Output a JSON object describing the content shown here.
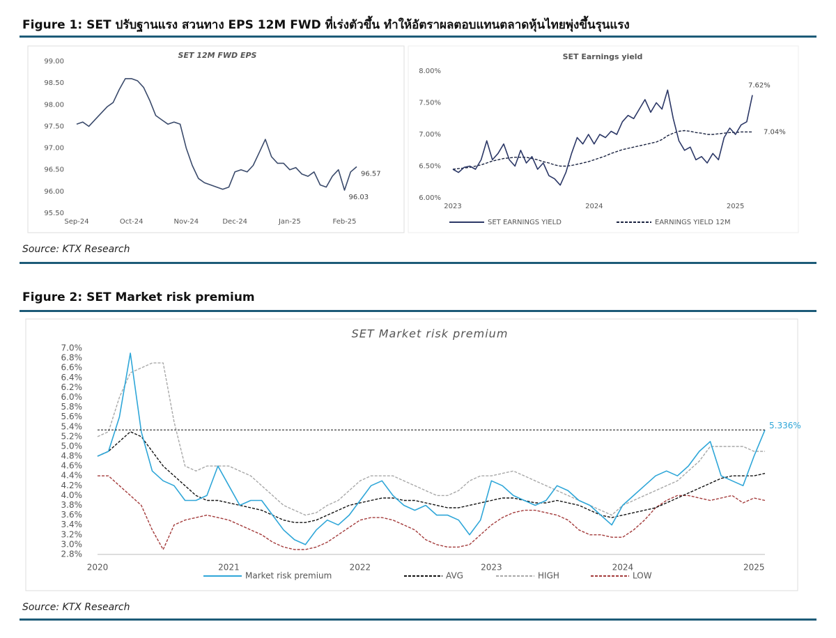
{
  "figure1": {
    "caption": "Figure 1: SET ปรับฐานแรง สวนทาง EPS 12M FWD ที่เร่งตัวขึ้น ทำให้อัตราผลตอบแทนตลาดหุ้นไทยพุ่งขึ้นรุนแรง",
    "source": "Source: KTX Research"
  },
  "figure2": {
    "caption": "Figure 2: SET Market risk premium",
    "source": "Source: KTX Research"
  },
  "chart_data": [
    {
      "type": "line",
      "title": "SET 12M FWD EPS",
      "categories": [
        "Sep-24",
        null,
        null,
        null,
        null,
        null,
        null,
        null,
        null,
        "Oct-24",
        null,
        null,
        null,
        null,
        null,
        null,
        null,
        null,
        "Nov-24",
        null,
        null,
        null,
        null,
        null,
        null,
        null,
        "Dec-24",
        null,
        null,
        null,
        null,
        null,
        null,
        null,
        null,
        "Jan-25",
        null,
        null,
        null,
        null,
        null,
        null,
        null,
        null,
        "Feb-25",
        null,
        null
      ],
      "values": [
        97.55,
        97.6,
        97.5,
        97.65,
        97.8,
        97.95,
        98.05,
        98.35,
        98.6,
        98.6,
        98.55,
        98.4,
        98.1,
        97.75,
        97.65,
        97.55,
        97.6,
        97.55,
        97.0,
        96.6,
        96.3,
        96.2,
        96.15,
        96.1,
        96.05,
        96.1,
        96.45,
        96.5,
        96.45,
        96.6,
        96.9,
        97.2,
        96.8,
        96.65,
        96.65,
        96.5,
        96.55,
        96.4,
        96.35,
        96.45,
        96.15,
        96.1,
        96.35,
        96.5,
        96.03,
        96.45,
        96.57
      ],
      "value_labels": [
        null,
        null,
        null,
        null,
        null,
        null,
        null,
        null,
        null,
        null,
        null,
        null,
        null,
        null,
        null,
        null,
        null,
        null,
        null,
        null,
        null,
        null,
        null,
        null,
        null,
        null,
        null,
        null,
        null,
        null,
        null,
        null,
        null,
        null,
        null,
        null,
        null,
        null,
        null,
        null,
        null,
        null,
        null,
        null,
        "96.03",
        null,
        "96.57"
      ],
      "color": "#3a4a6b",
      "ylim": [
        95.5,
        99.0
      ],
      "yticks": [
        {
          "value": 95.5,
          "label": "95.50"
        },
        {
          "value": 96,
          "label": "96.00"
        },
        {
          "value": 96.5,
          "label": "96.50"
        },
        {
          "value": 97,
          "label": "97.00"
        },
        {
          "value": 97.5,
          "label": "97.50"
        },
        {
          "value": 98,
          "label": "98.00"
        },
        {
          "value": 98.5,
          "label": "98.50"
        },
        {
          "value": 99,
          "label": "99.00"
        }
      ]
    },
    {
      "type": "line",
      "title": "SET Earnings yield",
      "categories": [
        "2023",
        null,
        null,
        null,
        null,
        null,
        null,
        null,
        null,
        null,
        null,
        null,
        null,
        null,
        null,
        null,
        null,
        null,
        null,
        null,
        null,
        null,
        null,
        null,
        null,
        "2024",
        null,
        null,
        null,
        null,
        null,
        null,
        null,
        null,
        null,
        null,
        null,
        null,
        null,
        null,
        null,
        null,
        null,
        null,
        null,
        null,
        null,
        null,
        null,
        null,
        "2025",
        null,
        null,
        null
      ],
      "series": [
        {
          "name": "SET EARNINGS YIELD",
          "color": "#2b3766",
          "dashed": false,
          "values": [
            6.45,
            6.4,
            6.48,
            6.5,
            6.45,
            6.6,
            6.9,
            6.6,
            6.7,
            6.85,
            6.6,
            6.5,
            6.75,
            6.55,
            6.65,
            6.45,
            6.55,
            6.35,
            6.3,
            6.2,
            6.4,
            6.7,
            6.95,
            6.85,
            7.0,
            6.85,
            7.0,
            6.95,
            7.05,
            7.0,
            7.2,
            7.3,
            7.25,
            7.4,
            7.55,
            7.35,
            7.5,
            7.4,
            7.7,
            7.25,
            6.9,
            6.75,
            6.8,
            6.6,
            6.65,
            6.55,
            6.7,
            6.6,
            6.95,
            7.1,
            7.0,
            7.15,
            7.2,
            7.62
          ],
          "value_labels": [
            null,
            null,
            null,
            null,
            null,
            null,
            null,
            null,
            null,
            null,
            null,
            null,
            null,
            null,
            null,
            null,
            null,
            null,
            null,
            null,
            null,
            null,
            null,
            null,
            null,
            null,
            null,
            null,
            null,
            null,
            null,
            null,
            null,
            null,
            null,
            null,
            null,
            null,
            null,
            null,
            null,
            null,
            null,
            null,
            null,
            null,
            null,
            null,
            null,
            null,
            null,
            null,
            null,
            "7.62%"
          ]
        },
        {
          "name": "EARNINGS YIELD 12M",
          "color": "#1a2340",
          "dashed": true,
          "values": [
            6.45,
            6.46,
            6.47,
            6.48,
            6.5,
            6.52,
            6.55,
            6.58,
            6.6,
            6.62,
            6.63,
            6.64,
            6.64,
            6.64,
            6.62,
            6.6,
            6.57,
            6.55,
            6.52,
            6.5,
            6.5,
            6.51,
            6.53,
            6.55,
            6.57,
            6.6,
            6.63,
            6.66,
            6.7,
            6.73,
            6.76,
            6.78,
            6.8,
            6.82,
            6.84,
            6.86,
            6.88,
            6.92,
            6.98,
            7.02,
            7.05,
            7.06,
            7.05,
            7.03,
            7.02,
            7.0,
            7.0,
            7.01,
            7.02,
            7.03,
            7.03,
            7.04,
            7.04,
            7.04
          ],
          "value_labels": [
            null,
            null,
            null,
            null,
            null,
            null,
            null,
            null,
            null,
            null,
            null,
            null,
            null,
            null,
            null,
            null,
            null,
            null,
            null,
            null,
            null,
            null,
            null,
            null,
            null,
            null,
            null,
            null,
            null,
            null,
            null,
            null,
            null,
            null,
            null,
            null,
            null,
            null,
            null,
            null,
            null,
            null,
            null,
            null,
            null,
            null,
            null,
            null,
            null,
            null,
            null,
            null,
            null,
            "7.04%"
          ]
        }
      ],
      "ylim": [
        6.0,
        8.0
      ],
      "yticks": [
        {
          "value": 6,
          "label": "6.00%"
        },
        {
          "value": 6.5,
          "label": "6.50%"
        },
        {
          "value": 7,
          "label": "7.00%"
        },
        {
          "value": 7.5,
          "label": "7.50%"
        },
        {
          "value": 8,
          "label": "8.00%"
        }
      ]
    },
    {
      "type": "line",
      "title": "SET Market risk premium",
      "last_value_line": true,
      "categories": [
        "2020",
        null,
        null,
        null,
        null,
        null,
        null,
        null,
        null,
        null,
        null,
        null,
        "2021",
        null,
        null,
        null,
        null,
        null,
        null,
        null,
        null,
        null,
        null,
        null,
        "2022",
        null,
        null,
        null,
        null,
        null,
        null,
        null,
        null,
        null,
        null,
        null,
        "2023",
        null,
        null,
        null,
        null,
        null,
        null,
        null,
        null,
        null,
        null,
        null,
        "2024",
        null,
        null,
        null,
        null,
        null,
        null,
        null,
        null,
        null,
        null,
        null,
        "2025",
        null
      ],
      "series": [
        {
          "name": "Market risk premium",
          "color": "#2ea6d8",
          "dashed": false,
          "values": [
            4.8,
            4.9,
            5.6,
            6.9,
            5.3,
            4.5,
            4.3,
            4.2,
            3.9,
            3.9,
            4.0,
            4.6,
            4.2,
            3.8,
            3.9,
            3.9,
            3.6,
            3.3,
            3.1,
            3.0,
            3.3,
            3.5,
            3.4,
            3.6,
            3.9,
            4.2,
            4.3,
            4.0,
            3.8,
            3.7,
            3.8,
            3.6,
            3.6,
            3.5,
            3.2,
            3.5,
            4.3,
            4.2,
            4.0,
            3.9,
            3.8,
            3.9,
            4.2,
            4.1,
            3.9,
            3.8,
            3.6,
            3.4,
            3.8,
            4.0,
            4.2,
            4.4,
            4.5,
            4.4,
            4.6,
            4.9,
            5.1,
            4.4,
            4.3,
            4.2,
            4.8,
            5.336
          ],
          "value_labels": [
            null,
            null,
            null,
            null,
            null,
            null,
            null,
            null,
            null,
            null,
            null,
            null,
            null,
            null,
            null,
            null,
            null,
            null,
            null,
            null,
            null,
            null,
            null,
            null,
            null,
            null,
            null,
            null,
            null,
            null,
            null,
            null,
            null,
            null,
            null,
            null,
            null,
            null,
            null,
            null,
            null,
            null,
            null,
            null,
            null,
            null,
            null,
            null,
            null,
            null,
            null,
            null,
            null,
            null,
            null,
            null,
            null,
            null,
            null,
            null,
            null,
            "5.336%"
          ]
        },
        {
          "name": "AVG",
          "color": "#111111",
          "dashed": true,
          "values": [
            4.8,
            4.9,
            5.1,
            5.3,
            5.2,
            4.9,
            4.6,
            4.4,
            4.2,
            4.0,
            3.9,
            3.9,
            3.85,
            3.8,
            3.75,
            3.7,
            3.6,
            3.5,
            3.45,
            3.45,
            3.5,
            3.6,
            3.7,
            3.8,
            3.85,
            3.9,
            3.95,
            3.95,
            3.9,
            3.9,
            3.85,
            3.8,
            3.75,
            3.75,
            3.8,
            3.85,
            3.9,
            3.95,
            3.95,
            3.9,
            3.85,
            3.85,
            3.9,
            3.85,
            3.8,
            3.7,
            3.6,
            3.55,
            3.6,
            3.65,
            3.7,
            3.75,
            3.85,
            3.95,
            4.05,
            4.15,
            4.25,
            4.35,
            4.4,
            4.4,
            4.4,
            4.45
          ]
        },
        {
          "name": "HIGH",
          "color": "#a8a8a8",
          "dashed": true,
          "values": [
            5.2,
            5.3,
            6.0,
            6.5,
            6.6,
            6.7,
            6.7,
            5.5,
            4.6,
            4.5,
            4.6,
            4.6,
            4.6,
            4.5,
            4.4,
            4.2,
            4.0,
            3.8,
            3.7,
            3.6,
            3.65,
            3.8,
            3.9,
            4.1,
            4.3,
            4.4,
            4.4,
            4.4,
            4.3,
            4.2,
            4.1,
            4.0,
            4.0,
            4.1,
            4.3,
            4.4,
            4.4,
            4.45,
            4.5,
            4.4,
            4.3,
            4.2,
            4.1,
            4.0,
            3.9,
            3.8,
            3.7,
            3.6,
            3.8,
            3.9,
            4.0,
            4.1,
            4.2,
            4.3,
            4.5,
            4.7,
            5.0,
            5.0,
            5.0,
            5.0,
            4.9,
            4.9
          ]
        },
        {
          "name": "LOW",
          "color": "#a33a3a",
          "dashed": true,
          "values": [
            4.4,
            4.4,
            4.2,
            4.0,
            3.8,
            3.3,
            2.9,
            3.4,
            3.5,
            3.55,
            3.6,
            3.55,
            3.5,
            3.4,
            3.3,
            3.2,
            3.05,
            2.95,
            2.9,
            2.9,
            2.95,
            3.05,
            3.2,
            3.35,
            3.5,
            3.55,
            3.55,
            3.5,
            3.4,
            3.3,
            3.1,
            3.0,
            2.95,
            2.95,
            3.0,
            3.2,
            3.4,
            3.55,
            3.65,
            3.7,
            3.7,
            3.65,
            3.6,
            3.5,
            3.3,
            3.2,
            3.2,
            3.15,
            3.15,
            3.3,
            3.5,
            3.75,
            3.9,
            4.0,
            4.0,
            3.95,
            3.9,
            3.95,
            4.0,
            3.85,
            3.95,
            3.9
          ]
        }
      ],
      "ylim": [
        2.8,
        7.0
      ],
      "yticks": [
        {
          "value": 2.8,
          "label": "2.8%"
        },
        {
          "value": 3.0,
          "label": "3.0%"
        },
        {
          "value": 3.2,
          "label": "3.2%"
        },
        {
          "value": 3.4,
          "label": "3.4%"
        },
        {
          "value": 3.6,
          "label": "3.6%"
        },
        {
          "value": 3.8,
          "label": "3.8%"
        },
        {
          "value": 4.0,
          "label": "4.0%"
        },
        {
          "value": 4.2,
          "label": "4.2%"
        },
        {
          "value": 4.4,
          "label": "4.4%"
        },
        {
          "value": 4.6,
          "label": "4.6%"
        },
        {
          "value": 4.8,
          "label": "4.8%"
        },
        {
          "value": 5.0,
          "label": "5.0%"
        },
        {
          "value": 5.2,
          "label": "5.2%"
        },
        {
          "value": 5.4,
          "label": "5.4%"
        },
        {
          "value": 5.6,
          "label": "5.6%"
        },
        {
          "value": 5.8,
          "label": "5.8%"
        },
        {
          "value": 6.0,
          "label": "6.0%"
        },
        {
          "value": 6.2,
          "label": "6.2%"
        },
        {
          "value": 6.4,
          "label": "6.4%"
        },
        {
          "value": 6.6,
          "label": "6.6%"
        },
        {
          "value": 6.8,
          "label": "6.8%"
        },
        {
          "value": 7.0,
          "label": "7.0%"
        }
      ]
    }
  ]
}
